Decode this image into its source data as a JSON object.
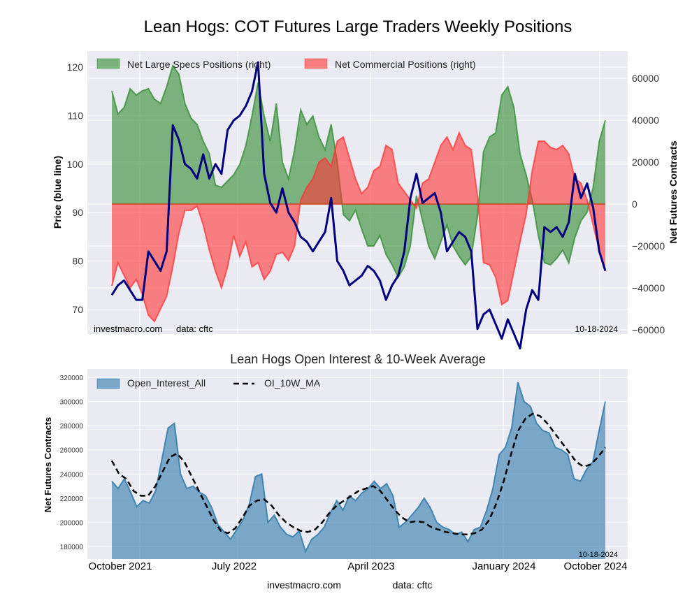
{
  "chart_data": [
    {
      "type": "area",
      "title": "Lean Hogs: COT Futures Large Traders Weekly Positions",
      "ylabel_left": "Price (blue line)",
      "ylabel_right": "Net Futures Contracts",
      "ylim_left": [
        65,
        123
      ],
      "ylim_right": [
        -60000,
        73000
      ],
      "yticks_left": [
        "70",
        "80",
        "90",
        "100",
        "110",
        "120"
      ],
      "yticks_right": [
        "60000",
        "40000",
        "20000",
        "0",
        "−20000",
        "−40000",
        "−60000"
      ],
      "ytick_values_left": [
        70,
        80,
        90,
        100,
        110,
        120
      ],
      "ytick_values_right": [
        60000,
        40000,
        20000,
        0,
        -20000,
        -40000,
        -60000
      ],
      "legend": [
        "Net Large Specs Positions (right)",
        "Net Commercial Positions (right)"
      ],
      "legend_position": "top-left",
      "grid": true,
      "footer_left": "investmacro.com",
      "footer_mid": "data: cftc",
      "footer_date": "10-18-2024",
      "x_start": "2021-10",
      "x_end": "2024-10-18",
      "series": [
        {
          "name": "Net Large Specs Positions (right)",
          "color": "#2e8b2e",
          "values": [
            54000,
            43000,
            46000,
            55000,
            52000,
            54000,
            55000,
            50000,
            48000,
            56000,
            66000,
            62000,
            48000,
            41000,
            38000,
            30000,
            24000,
            9000,
            8000,
            11000,
            14000,
            19000,
            28000,
            42000,
            58000,
            42000,
            30000,
            48000,
            20000,
            12000,
            26000,
            45000,
            38000,
            42000,
            32000,
            26000,
            38000,
            20000,
            -5000,
            -8000,
            -3000,
            -12000,
            -20000,
            -20000,
            -15000,
            -24000,
            -29000,
            -35000,
            -30000,
            -20000,
            4000,
            -8000,
            -20000,
            -26000,
            -18000,
            -10000,
            -20000,
            -25000,
            -29000,
            -25000,
            -6000,
            25000,
            32000,
            34000,
            52000,
            56000,
            46000,
            24000,
            14000,
            2000,
            -15000,
            -28000,
            -29000,
            -26000,
            -22000,
            -28000,
            -16000,
            -8000,
            -4000,
            8000,
            30000,
            40000
          ]
        },
        {
          "name": "Net Commercial Positions (right)",
          "color": "#ff3333",
          "values": [
            -39000,
            -28000,
            -34000,
            -40000,
            -36000,
            -43000,
            -53000,
            -56000,
            -50000,
            -44000,
            -30000,
            -14000,
            -3000,
            -3000,
            -1000,
            -10000,
            -22000,
            -32000,
            -40000,
            -30000,
            -15000,
            -25000,
            -18000,
            -30000,
            -28000,
            -36000,
            -32000,
            -24000,
            -23000,
            -27000,
            -20000,
            2000,
            8000,
            12000,
            20000,
            22000,
            18000,
            30000,
            32000,
            22000,
            12000,
            5000,
            8000,
            16000,
            18000,
            28000,
            26000,
            10000,
            6000,
            2000,
            -2000,
            10000,
            12000,
            20000,
            28000,
            32000,
            26000,
            34000,
            28000,
            26000,
            4000,
            -28000,
            -29000,
            -35000,
            -48000,
            -46000,
            -32000,
            -18000,
            -5000,
            16000,
            30000,
            30000,
            27000,
            26000,
            28000,
            24000,
            12000,
            10000,
            2000,
            -10000,
            -22000,
            -32000
          ]
        },
        {
          "name": "Price (blue line)",
          "color": "#00007f",
          "values": [
            73,
            75,
            76,
            74,
            72,
            72,
            82,
            80,
            78,
            82,
            108,
            105,
            100,
            99,
            97,
            102,
            97,
            100,
            98,
            107,
            109,
            110,
            112,
            115,
            121,
            98,
            92,
            90,
            95,
            90,
            88,
            85,
            84,
            82,
            84,
            86,
            93,
            80,
            78,
            75,
            76,
            77,
            79,
            78,
            76,
            72,
            75,
            77,
            82,
            93,
            98,
            92,
            93,
            94,
            90,
            82,
            84,
            86,
            85,
            82,
            66,
            69,
            70,
            67,
            64,
            68,
            65,
            62,
            70,
            74,
            72,
            87,
            86,
            87,
            85,
            88,
            98,
            93,
            96,
            91,
            82,
            78
          ]
        }
      ]
    },
    {
      "type": "area",
      "title": "Lean Hogs Open Interest & 10-Week Average",
      "ylabel": "Net Futures Contracts",
      "ylim": [
        170000,
        327000
      ],
      "yticks": [
        "320000",
        "300000",
        "280000",
        "260000",
        "240000",
        "220000",
        "200000",
        "180000"
      ],
      "ytick_values": [
        320000,
        300000,
        280000,
        260000,
        240000,
        220000,
        200000,
        180000
      ],
      "xticks": [
        "October 2021",
        "July 2022",
        "April 2023",
        "January 2024",
        "October 2024"
      ],
      "legend": [
        "Open_Interest_All",
        "OI_10W_MA"
      ],
      "legend_position": "top-left",
      "grid": true,
      "footer_date": "10-18-2024",
      "series": [
        {
          "name": "Open_Interest_All",
          "color": "#2f7aab",
          "values": [
            234000,
            228000,
            236000,
            225000,
            213000,
            218000,
            216000,
            226000,
            252000,
            278000,
            282000,
            240000,
            228000,
            230000,
            225000,
            222000,
            212000,
            198000,
            192000,
            186000,
            194000,
            202000,
            215000,
            238000,
            240000,
            200000,
            206000,
            196000,
            190000,
            188000,
            193000,
            176000,
            186000,
            190000,
            196000,
            208000,
            218000,
            210000,
            222000,
            218000,
            224000,
            228000,
            234000,
            228000,
            232000,
            222000,
            196000,
            200000,
            206000,
            212000,
            220000,
            212000,
            200000,
            196000,
            194000,
            190000,
            192000,
            184000,
            194000,
            196000,
            210000,
            228000,
            256000,
            262000,
            278000,
            316000,
            300000,
            296000,
            282000,
            276000,
            274000,
            262000,
            260000,
            256000,
            236000,
            234000,
            244000,
            250000,
            276000,
            300000
          ]
        },
        {
          "name": "OI_10W_MA",
          "color": "#000000",
          "dashed": true,
          "values": [
            251000,
            240000,
            236000,
            226000,
            222000,
            222000,
            230000,
            242000,
            254000,
            257000,
            250000,
            238000,
            226000,
            214000,
            202000,
            193000,
            191000,
            195000,
            204000,
            214000,
            218000,
            219000,
            214000,
            206000,
            200000,
            196000,
            193000,
            192000,
            194000,
            200000,
            208000,
            214000,
            218000,
            222000,
            226000,
            228000,
            230000,
            226000,
            218000,
            210000,
            204000,
            200000,
            201000,
            200000,
            196000,
            194000,
            192000,
            191000,
            190000,
            190000,
            191000,
            194000,
            202000,
            216000,
            234000,
            256000,
            276000,
            286000,
            290000,
            288000,
            282000,
            274000,
            266000,
            258000,
            250000,
            246000,
            248000,
            254000,
            262000
          ]
        }
      ]
    }
  ],
  "bottom_footer": {
    "site": "investmacro.com",
    "source": "data: cftc"
  }
}
